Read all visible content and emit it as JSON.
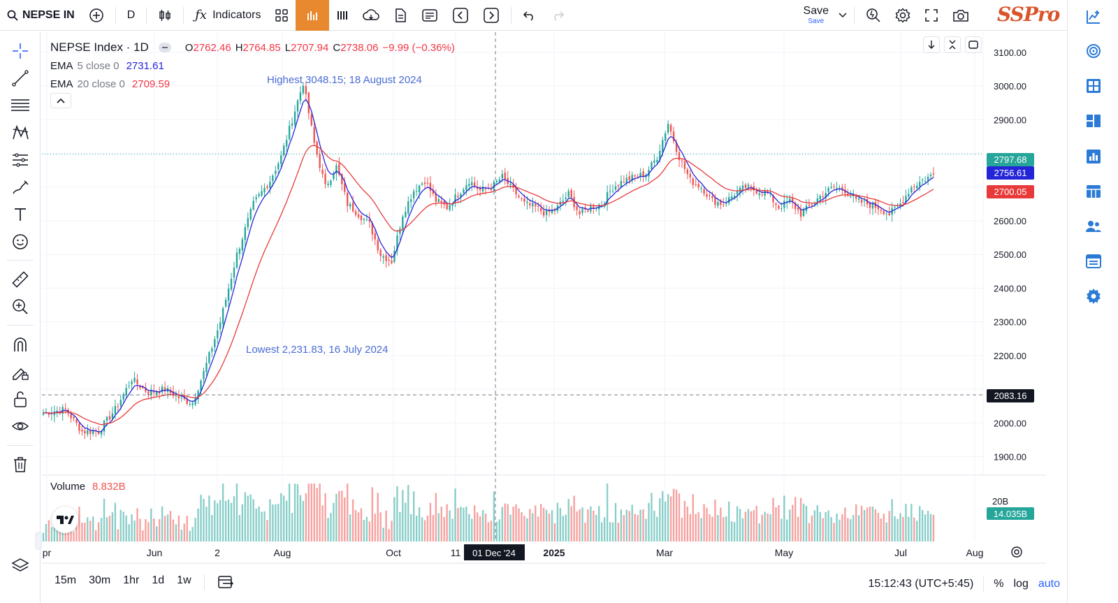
{
  "toolbar": {
    "symbol": "NEPSE IN",
    "interval": "D",
    "indicators_label": "Indicators",
    "save_label": "Save",
    "save_sub": "Save",
    "brand": "SSPro"
  },
  "legend": {
    "title": "NEPSE Index · 1D",
    "o_label": "O",
    "o_value": "2762.46",
    "h_label": "H",
    "h_value": "2764.85",
    "l_label": "L",
    "l_value": "2707.94",
    "c_label": "C",
    "c_value": "2738.06",
    "change": "−9.99 (−0.36%)",
    "ema5_name": "EMA",
    "ema5_params": "5 close 0",
    "ema5_value": "2731.61",
    "ema20_name": "EMA",
    "ema20_params": "20 close 0",
    "ema20_value": "2709.59"
  },
  "volume_legend": {
    "label": "Volume",
    "value": "8.832B"
  },
  "colors": {
    "up": "#26a69a",
    "down": "#ef5350",
    "ema5": "#2525d8",
    "ema20": "#e83a3a",
    "annotation": "#4a6cd4",
    "accent": "#e8892f"
  },
  "annotations": {
    "highest": "Highest 3048.15; 18 August 2024",
    "lowest": "Lowest 2,231.83, 16 July 2024"
  },
  "price_badges": [
    {
      "text": "2797.68",
      "value": 2797.68,
      "color": "#26a69a"
    },
    {
      "text": "2756.61",
      "value": 2756.61,
      "color": "#2525d8"
    },
    {
      "text": "2700.05",
      "value": 2700.05,
      "color": "#e83a3a"
    },
    {
      "text": "2083.16",
      "value": 2083.16,
      "color": "#131722"
    }
  ],
  "volume_badge": {
    "text": "14.035B",
    "color": "#26a69a"
  },
  "volume_axis_label": "20B",
  "crosshair_date": "01 Dec '24",
  "chart_data": {
    "type": "candlestick",
    "y_ticks": [
      1900,
      2000,
      2100,
      2200,
      2300,
      2400,
      2500,
      2600,
      2700,
      2800,
      2900,
      3000,
      3100
    ],
    "y_tick_labels": [
      "1900.00",
      "2000.00",
      "",
      "2200.00",
      "2300.00",
      "2400.00",
      "2500.00",
      "2600.00",
      "",
      "",
      "2900.00",
      "3000.00",
      "3100.00"
    ],
    "ylim": [
      1845,
      3160
    ],
    "x_ticks": [
      "pr",
      "Jun",
      "2",
      "Aug",
      "Oct",
      "11",
      "2025",
      "Mar",
      "May",
      "Jul",
      "Aug"
    ],
    "close_anchors": [
      [
        0,
        2030
      ],
      [
        8,
        2040
      ],
      [
        14,
        1975
      ],
      [
        20,
        1975
      ],
      [
        26,
        2040
      ],
      [
        32,
        2130
      ],
      [
        38,
        2090
      ],
      [
        44,
        2100
      ],
      [
        50,
        2070
      ],
      [
        54,
        2060
      ],
      [
        58,
        2150
      ],
      [
        64,
        2300
      ],
      [
        70,
        2500
      ],
      [
        76,
        2650
      ],
      [
        82,
        2720
      ],
      [
        86,
        2790
      ],
      [
        90,
        2900
      ],
      [
        94,
        3010
      ],
      [
        98,
        2830
      ],
      [
        102,
        2700
      ],
      [
        106,
        2760
      ],
      [
        110,
        2650
      ],
      [
        114,
        2620
      ],
      [
        118,
        2590
      ],
      [
        122,
        2500
      ],
      [
        126,
        2480
      ],
      [
        130,
        2620
      ],
      [
        134,
        2690
      ],
      [
        138,
        2720
      ],
      [
        142,
        2660
      ],
      [
        146,
        2640
      ],
      [
        150,
        2680
      ],
      [
        154,
        2720
      ],
      [
        158,
        2690
      ],
      [
        162,
        2700
      ],
      [
        166,
        2730
      ],
      [
        170,
        2690
      ],
      [
        174,
        2650
      ],
      [
        178,
        2640
      ],
      [
        182,
        2620
      ],
      [
        186,
        2640
      ],
      [
        190,
        2680
      ],
      [
        194,
        2620
      ],
      [
        198,
        2640
      ],
      [
        202,
        2650
      ],
      [
        206,
        2700
      ],
      [
        210,
        2720
      ],
      [
        214,
        2730
      ],
      [
        218,
        2740
      ],
      [
        222,
        2790
      ],
      [
        226,
        2890
      ],
      [
        230,
        2790
      ],
      [
        234,
        2720
      ],
      [
        238,
        2700
      ],
      [
        242,
        2660
      ],
      [
        246,
        2650
      ],
      [
        250,
        2680
      ],
      [
        254,
        2700
      ],
      [
        258,
        2690
      ],
      [
        262,
        2680
      ],
      [
        266,
        2640
      ],
      [
        270,
        2660
      ],
      [
        274,
        2620
      ],
      [
        278,
        2650
      ],
      [
        282,
        2680
      ],
      [
        286,
        2700
      ],
      [
        290,
        2690
      ],
      [
        294,
        2660
      ],
      [
        298,
        2650
      ],
      [
        302,
        2640
      ],
      [
        306,
        2620
      ],
      [
        310,
        2650
      ],
      [
        314,
        2700
      ],
      [
        318,
        2720
      ],
      [
        322,
        2738
      ]
    ],
    "ema5_last": 2731.61,
    "ema20_last": 2709.59,
    "volume_max_label": "20B"
  },
  "bottom_bar": {
    "intervals": [
      "15m",
      "30m",
      "1hr",
      "1d",
      "1w"
    ],
    "clock": "15:12:43 (UTC+5:45)",
    "pct": "%",
    "log": "log",
    "auto": "auto"
  }
}
